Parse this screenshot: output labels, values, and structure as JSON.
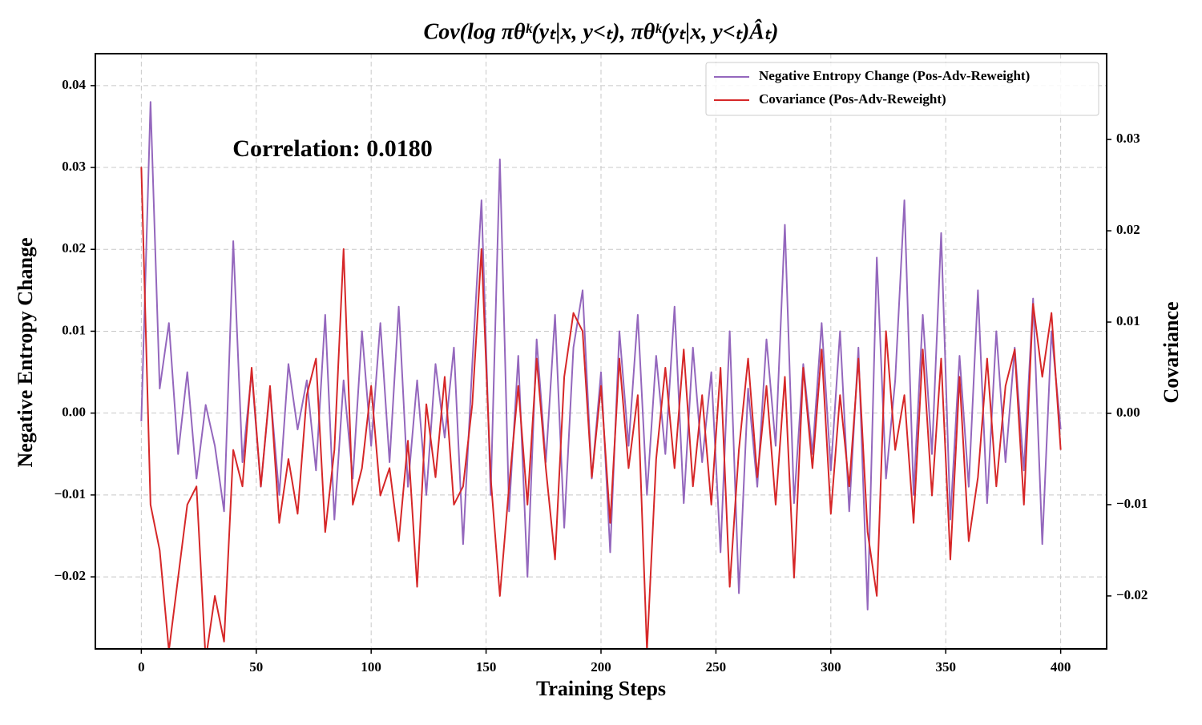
{
  "chart_data": {
    "type": "line",
    "title": "Cov(log πθᵏ(yₜ|x, y<ₜ), πθᵏ(yₜ|x, y<ₜ)Âₜ)",
    "annotation": "Correlation: 0.0180",
    "x_label": "Training Steps",
    "y_label": "Negative Entropy Change",
    "y2_label": "Covariance",
    "grid": true,
    "legend": "upper right",
    "xlim": [
      -20,
      420
    ],
    "xticks": [
      0,
      50,
      100,
      150,
      200,
      250,
      300,
      350,
      400
    ],
    "ylim": [
      -0.0288,
      0.0439
    ],
    "yticks": [
      {
        "value": -0.02,
        "label": "−0.02"
      },
      {
        "value": -0.01,
        "label": "−0.01"
      },
      {
        "value": 0,
        "label": "0.00"
      },
      {
        "value": 0.01,
        "label": "0.01"
      },
      {
        "value": 0.02,
        "label": "0.02"
      },
      {
        "value": 0.03,
        "label": "0.03"
      },
      {
        "value": 0.04,
        "label": "0.04"
      }
    ],
    "y2lim": [
      -0.0258,
      0.0394
    ],
    "y2ticks": [
      {
        "value": -0.02,
        "label": "−0.02"
      },
      {
        "value": -0.01,
        "label": "−0.01"
      },
      {
        "value": 0,
        "label": "0.00"
      },
      {
        "value": 0.01,
        "label": "0.01"
      },
      {
        "value": 0.02,
        "label": "0.02"
      },
      {
        "value": 0.03,
        "label": "0.03"
      }
    ],
    "x": [
      0,
      4,
      8,
      12,
      16,
      20,
      24,
      28,
      32,
      36,
      40,
      44,
      48,
      52,
      56,
      60,
      64,
      68,
      72,
      76,
      80,
      84,
      88,
      92,
      96,
      100,
      104,
      108,
      112,
      116,
      120,
      124,
      128,
      132,
      136,
      140,
      144,
      148,
      152,
      156,
      160,
      164,
      168,
      172,
      176,
      180,
      184,
      188,
      192,
      196,
      200,
      204,
      208,
      212,
      216,
      220,
      224,
      228,
      232,
      236,
      240,
      244,
      248,
      252,
      256,
      260,
      264,
      268,
      272,
      276,
      280,
      284,
      288,
      292,
      296,
      300,
      304,
      308,
      312,
      316,
      320,
      324,
      328,
      332,
      336,
      340,
      344,
      348,
      352,
      356,
      360,
      364,
      368,
      372,
      376,
      380,
      384,
      388,
      392,
      396,
      400
    ],
    "series": [
      {
        "name": "Negative Entropy Change (Pos-Adv-Reweight)",
        "color": "#9467bd",
        "values": [
          -0.001,
          0.038,
          0.003,
          0.011,
          -0.005,
          0.005,
          -0.008,
          0.001,
          -0.004,
          -0.012,
          0.021,
          -0.006,
          0.005,
          -0.009,
          0.003,
          -0.01,
          0.006,
          -0.002,
          0.004,
          -0.007,
          0.012,
          -0.013,
          0.004,
          -0.008,
          0.01,
          -0.004,
          0.011,
          -0.006,
          0.013,
          -0.009,
          0.004,
          -0.01,
          0.006,
          -0.003,
          0.008,
          -0.016,
          0.006,
          0.026,
          -0.01,
          0.031,
          -0.012,
          0.007,
          -0.02,
          0.009,
          -0.006,
          0.012,
          -0.014,
          0.008,
          0.015,
          -0.008,
          0.005,
          -0.017,
          0.01,
          -0.004,
          0.012,
          -0.01,
          0.007,
          -0.005,
          0.013,
          -0.011,
          0.008,
          -0.006,
          0.005,
          -0.017,
          0.01,
          -0.022,
          0.003,
          -0.009,
          0.009,
          -0.004,
          0.023,
          -0.011,
          0.006,
          -0.005,
          0.011,
          -0.007,
          0.01,
          -0.012,
          0.008,
          -0.024,
          0.019,
          -0.008,
          0.004,
          0.026,
          -0.01,
          0.012,
          -0.005,
          0.022,
          -0.013,
          0.007,
          -0.009,
          0.015,
          -0.011,
          0.01,
          -0.006,
          0.008,
          -0.007,
          0.014,
          -0.016,
          0.01,
          -0.002
        ]
      },
      {
        "name": "Covariance (Pos-Adv-Reweight)",
        "color": "#d62728",
        "axis": "y2",
        "values": [
          0.027,
          -0.01,
          -0.015,
          -0.026,
          -0.018,
          -0.01,
          -0.008,
          -0.027,
          -0.02,
          -0.025,
          -0.004,
          -0.008,
          0.005,
          -0.008,
          0.003,
          -0.012,
          -0.005,
          -0.011,
          0.002,
          0.006,
          -0.013,
          -0.004,
          0.018,
          -0.01,
          -0.006,
          0.003,
          -0.009,
          -0.006,
          -0.014,
          -0.003,
          -0.019,
          0.001,
          -0.007,
          0.004,
          -0.01,
          -0.008,
          0.001,
          0.018,
          -0.007,
          -0.02,
          -0.008,
          0.003,
          -0.01,
          0.006,
          -0.006,
          -0.016,
          0.004,
          0.011,
          0.009,
          -0.007,
          0.003,
          -0.012,
          0.006,
          -0.006,
          0.002,
          -0.026,
          -0.005,
          0.005,
          -0.006,
          0.007,
          -0.008,
          0.002,
          -0.01,
          0.005,
          -0.019,
          -0.004,
          0.006,
          -0.007,
          0.003,
          -0.01,
          0.004,
          -0.018,
          0.005,
          -0.006,
          0.007,
          -0.011,
          0.002,
          -0.008,
          0.006,
          -0.013,
          -0.02,
          0.009,
          -0.004,
          0.002,
          -0.012,
          0.007,
          -0.009,
          0.006,
          -0.016,
          0.004,
          -0.014,
          -0.007,
          0.006,
          -0.008,
          0.003,
          0.007,
          -0.01,
          0.012,
          0.004,
          0.011,
          -0.004
        ]
      }
    ]
  }
}
